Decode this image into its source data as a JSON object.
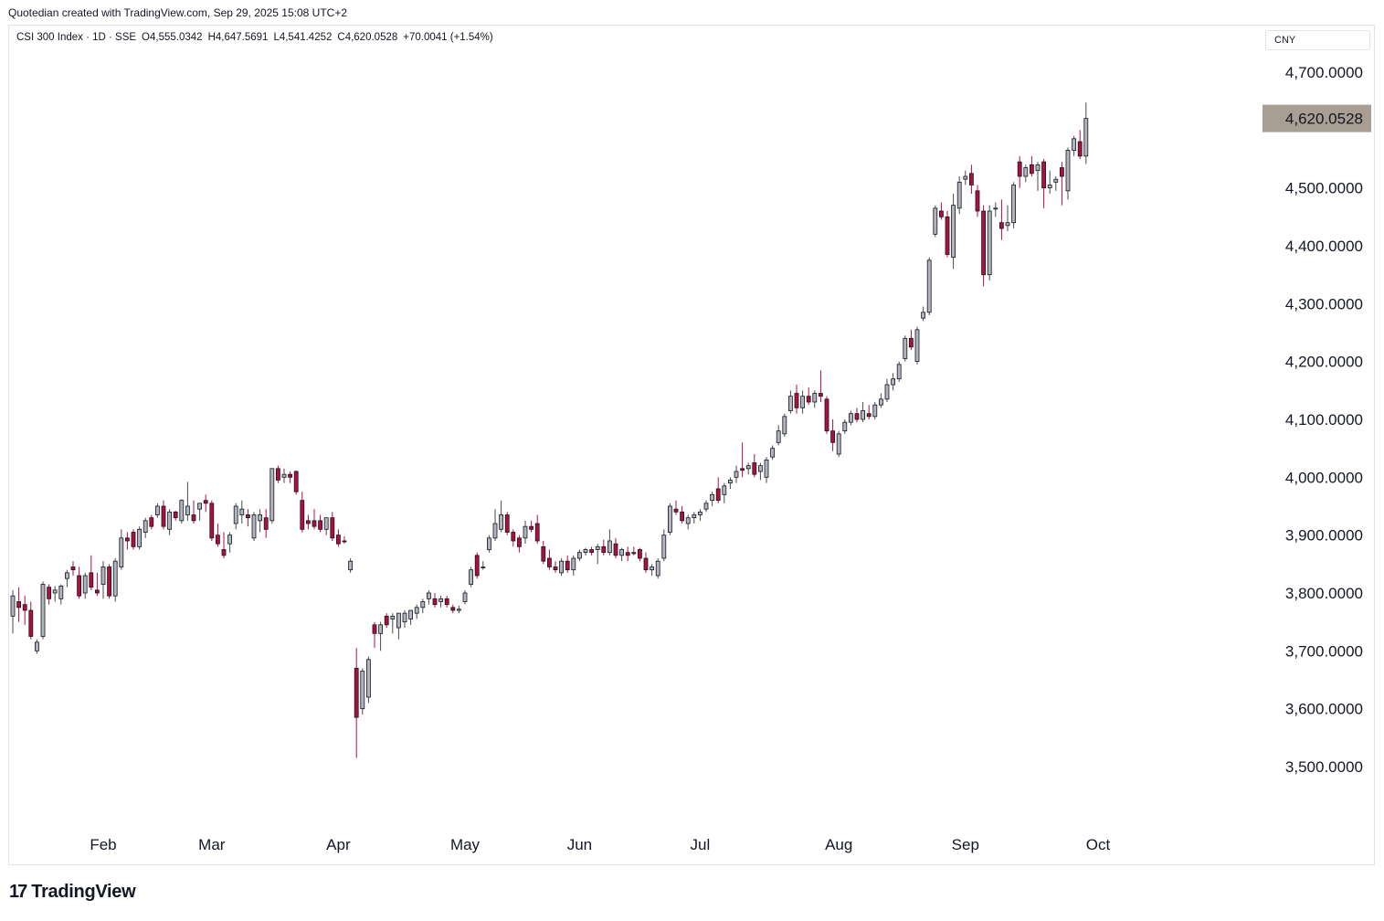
{
  "header": {
    "caption": "Quotedian created with TradingView.com, Sep 29, 2025 15:08 UTC+2"
  },
  "legend": {
    "symbol": "CSI 300 Index · 1D · SSE",
    "open": "O4,555.0342",
    "high": "H4,647.5691",
    "low": "L4,541.4252",
    "close": "C4,620.0528",
    "change": "+70.0041 (+1.54%)"
  },
  "currency": "CNY",
  "footer": {
    "logo_mark": "17",
    "brand": "TradingView"
  },
  "colors": {
    "up": "#b2b5be",
    "up_border": "#131722",
    "down": "#b00f3c",
    "down_border": "#131722",
    "last_price_bg": "#a89e93"
  },
  "chart_data": {
    "type": "candlestick",
    "title": "CSI 300 Index · 1D · SSE",
    "ylim": [
      3380,
      4810
    ],
    "yticks": [
      {
        "value": 4700,
        "label": "4,700.0000"
      },
      {
        "value": 4500,
        "label": "4,500.0000"
      },
      {
        "value": 4400,
        "label": "4,400.0000"
      },
      {
        "value": 4300,
        "label": "4,300.0000"
      },
      {
        "value": 4200,
        "label": "4,200.0000"
      },
      {
        "value": 4100,
        "label": "4,100.0000"
      },
      {
        "value": 4000,
        "label": "4,000.0000"
      },
      {
        "value": 3900,
        "label": "3,900.0000"
      },
      {
        "value": 3800,
        "label": "3,800.0000"
      },
      {
        "value": 3700,
        "label": "3,700.0000"
      },
      {
        "value": 3600,
        "label": "3,600.0000"
      },
      {
        "value": 3500,
        "label": "3,500.0000"
      }
    ],
    "xticks": [
      {
        "index": 15,
        "label": "Feb"
      },
      {
        "index": 33,
        "label": "Mar"
      },
      {
        "index": 54,
        "label": "Apr"
      },
      {
        "index": 75,
        "label": "May"
      },
      {
        "index": 94,
        "label": "Jun"
      },
      {
        "index": 114,
        "label": "Jul"
      },
      {
        "index": 137,
        "label": "Aug"
      },
      {
        "index": 158,
        "label": "Sep"
      },
      {
        "index": 180,
        "label": "Oct"
      }
    ],
    "last_price": {
      "value": 4620.0528,
      "label": "4,620.0528"
    },
    "candles": [
      {
        "o": 3760,
        "h": 3805,
        "l": 3730,
        "c": 3795
      },
      {
        "o": 3785,
        "h": 3810,
        "l": 3750,
        "c": 3775
      },
      {
        "o": 3780,
        "h": 3795,
        "l": 3745,
        "c": 3770
      },
      {
        "o": 3770,
        "h": 3785,
        "l": 3720,
        "c": 3725
      },
      {
        "o": 3700,
        "h": 3720,
        "l": 3695,
        "c": 3715
      },
      {
        "o": 3725,
        "h": 3820,
        "l": 3720,
        "c": 3815
      },
      {
        "o": 3810,
        "h": 3815,
        "l": 3780,
        "c": 3790
      },
      {
        "o": 3800,
        "h": 3812,
        "l": 3785,
        "c": 3805
      },
      {
        "o": 3790,
        "h": 3815,
        "l": 3780,
        "c": 3812
      },
      {
        "o": 3825,
        "h": 3840,
        "l": 3810,
        "c": 3835
      },
      {
        "o": 3845,
        "h": 3855,
        "l": 3830,
        "c": 3840
      },
      {
        "o": 3830,
        "h": 3845,
        "l": 3790,
        "c": 3795
      },
      {
        "o": 3800,
        "h": 3835,
        "l": 3790,
        "c": 3830
      },
      {
        "o": 3835,
        "h": 3865,
        "l": 3805,
        "c": 3810
      },
      {
        "o": 3805,
        "h": 3835,
        "l": 3795,
        "c": 3800
      },
      {
        "o": 3815,
        "h": 3855,
        "l": 3790,
        "c": 3845
      },
      {
        "o": 3845,
        "h": 3850,
        "l": 3790,
        "c": 3795
      },
      {
        "o": 3795,
        "h": 3860,
        "l": 3785,
        "c": 3855
      },
      {
        "o": 3845,
        "h": 3910,
        "l": 3840,
        "c": 3895
      },
      {
        "o": 3895,
        "h": 3905,
        "l": 3875,
        "c": 3890
      },
      {
        "o": 3905,
        "h": 3910,
        "l": 3875,
        "c": 3880
      },
      {
        "o": 3880,
        "h": 3915,
        "l": 3875,
        "c": 3910
      },
      {
        "o": 3905,
        "h": 3930,
        "l": 3895,
        "c": 3925
      },
      {
        "o": 3930,
        "h": 3935,
        "l": 3910,
        "c": 3915
      },
      {
        "o": 3935,
        "h": 3955,
        "l": 3930,
        "c": 3950
      },
      {
        "o": 3950,
        "h": 3960,
        "l": 3910,
        "c": 3915
      },
      {
        "o": 3910,
        "h": 3945,
        "l": 3900,
        "c": 3940
      },
      {
        "o": 3940,
        "h": 3942,
        "l": 3925,
        "c": 3930
      },
      {
        "o": 3925,
        "h": 3962,
        "l": 3920,
        "c": 3960
      },
      {
        "o": 3935,
        "h": 3992,
        "l": 3925,
        "c": 3950
      },
      {
        "o": 3935,
        "h": 3960,
        "l": 3920,
        "c": 3925
      },
      {
        "o": 3945,
        "h": 3955,
        "l": 3925,
        "c": 3955
      },
      {
        "o": 3960,
        "h": 3970,
        "l": 3940,
        "c": 3955
      },
      {
        "o": 3955,
        "h": 3960,
        "l": 3890,
        "c": 3895
      },
      {
        "o": 3900,
        "h": 3920,
        "l": 3880,
        "c": 3885
      },
      {
        "o": 3875,
        "h": 3905,
        "l": 3860,
        "c": 3865
      },
      {
        "o": 3885,
        "h": 3905,
        "l": 3870,
        "c": 3900
      },
      {
        "o": 3920,
        "h": 3955,
        "l": 3910,
        "c": 3950
      },
      {
        "o": 3935,
        "h": 3960,
        "l": 3920,
        "c": 3945
      },
      {
        "o": 3935,
        "h": 3945,
        "l": 3915,
        "c": 3930
      },
      {
        "o": 3895,
        "h": 3940,
        "l": 3890,
        "c": 3935
      },
      {
        "o": 3925,
        "h": 3945,
        "l": 3905,
        "c": 3935
      },
      {
        "o": 3930,
        "h": 3945,
        "l": 3895,
        "c": 3910
      },
      {
        "o": 3925,
        "h": 4015,
        "l": 3920,
        "c": 4015
      },
      {
        "o": 4015,
        "h": 4020,
        "l": 3990,
        "c": 3995
      },
      {
        "o": 4000,
        "h": 4015,
        "l": 3990,
        "c": 4005
      },
      {
        "o": 4005,
        "h": 4010,
        "l": 3990,
        "c": 4000
      },
      {
        "o": 4010,
        "h": 4012,
        "l": 3970,
        "c": 3975
      },
      {
        "o": 3960,
        "h": 3975,
        "l": 3905,
        "c": 3910
      },
      {
        "o": 3925,
        "h": 3935,
        "l": 3910,
        "c": 3920
      },
      {
        "o": 3925,
        "h": 3945,
        "l": 3910,
        "c": 3915
      },
      {
        "o": 3925,
        "h": 3935,
        "l": 3905,
        "c": 3910
      },
      {
        "o": 3910,
        "h": 3925,
        "l": 3900,
        "c": 3930
      },
      {
        "o": 3930,
        "h": 3940,
        "l": 3890,
        "c": 3895
      },
      {
        "o": 3900,
        "h": 3910,
        "l": 3880,
        "c": 3885
      },
      {
        "o": 3890,
        "h": 3898,
        "l": 3885,
        "c": 3889
      },
      {
        "o": 3840,
        "h": 3860,
        "l": 3835,
        "c": 3855
      },
      {
        "o": 3670,
        "h": 3705,
        "l": 3515,
        "c": 3585
      },
      {
        "o": 3600,
        "h": 3670,
        "l": 3590,
        "c": 3665
      },
      {
        "o": 3620,
        "h": 3690,
        "l": 3610,
        "c": 3685
      },
      {
        "o": 3745,
        "h": 3750,
        "l": 3705,
        "c": 3730
      },
      {
        "o": 3730,
        "h": 3750,
        "l": 3700,
        "c": 3745
      },
      {
        "o": 3760,
        "h": 3765,
        "l": 3740,
        "c": 3745
      },
      {
        "o": 3755,
        "h": 3765,
        "l": 3730,
        "c": 3760
      },
      {
        "o": 3740,
        "h": 3765,
        "l": 3720,
        "c": 3765
      },
      {
        "o": 3750,
        "h": 3770,
        "l": 3740,
        "c": 3765
      },
      {
        "o": 3755,
        "h": 3770,
        "l": 3745,
        "c": 3770
      },
      {
        "o": 3765,
        "h": 3780,
        "l": 3755,
        "c": 3775
      },
      {
        "o": 3775,
        "h": 3790,
        "l": 3765,
        "c": 3785
      },
      {
        "o": 3790,
        "h": 3805,
        "l": 3780,
        "c": 3800
      },
      {
        "o": 3790,
        "h": 3800,
        "l": 3775,
        "c": 3780
      },
      {
        "o": 3785,
        "h": 3795,
        "l": 3775,
        "c": 3790
      },
      {
        "o": 3790,
        "h": 3795,
        "l": 3775,
        "c": 3780
      },
      {
        "o": 3775,
        "h": 3780,
        "l": 3765,
        "c": 3770
      },
      {
        "o": 3770,
        "h": 3778,
        "l": 3765,
        "c": 3772
      },
      {
        "o": 3785,
        "h": 3805,
        "l": 3780,
        "c": 3800
      },
      {
        "o": 3815,
        "h": 3845,
        "l": 3810,
        "c": 3840
      },
      {
        "o": 3865,
        "h": 3870,
        "l": 3825,
        "c": 3830
      },
      {
        "o": 3845,
        "h": 3855,
        "l": 3840,
        "c": 3845
      },
      {
        "o": 3875,
        "h": 3900,
        "l": 3870,
        "c": 3895
      },
      {
        "o": 3895,
        "h": 3945,
        "l": 3890,
        "c": 3920
      },
      {
        "o": 3910,
        "h": 3960,
        "l": 3905,
        "c": 3935
      },
      {
        "o": 3935,
        "h": 3940,
        "l": 3900,
        "c": 3905
      },
      {
        "o": 3905,
        "h": 3910,
        "l": 3880,
        "c": 3890
      },
      {
        "o": 3895,
        "h": 3900,
        "l": 3870,
        "c": 3880
      },
      {
        "o": 3895,
        "h": 3925,
        "l": 3885,
        "c": 3915
      },
      {
        "o": 3915,
        "h": 3925,
        "l": 3905,
        "c": 3910
      },
      {
        "o": 3920,
        "h": 3935,
        "l": 3885,
        "c": 3890
      },
      {
        "o": 3880,
        "h": 3890,
        "l": 3850,
        "c": 3855
      },
      {
        "o": 3860,
        "h": 3875,
        "l": 3840,
        "c": 3845
      },
      {
        "o": 3845,
        "h": 3855,
        "l": 3835,
        "c": 3840
      },
      {
        "o": 3835,
        "h": 3860,
        "l": 3830,
        "c": 3855
      },
      {
        "o": 3855,
        "h": 3865,
        "l": 3835,
        "c": 3840
      },
      {
        "o": 3840,
        "h": 3865,
        "l": 3830,
        "c": 3860
      },
      {
        "o": 3860,
        "h": 3875,
        "l": 3855,
        "c": 3870
      },
      {
        "o": 3870,
        "h": 3878,
        "l": 3865,
        "c": 3875
      },
      {
        "o": 3875,
        "h": 3880,
        "l": 3865,
        "c": 3870
      },
      {
        "o": 3875,
        "h": 3885,
        "l": 3850,
        "c": 3880
      },
      {
        "o": 3880,
        "h": 3892,
        "l": 3865,
        "c": 3870
      },
      {
        "o": 3870,
        "h": 3910,
        "l": 3865,
        "c": 3890
      },
      {
        "o": 3885,
        "h": 3895,
        "l": 3860,
        "c": 3865
      },
      {
        "o": 3865,
        "h": 3878,
        "l": 3855,
        "c": 3875
      },
      {
        "o": 3870,
        "h": 3880,
        "l": 3855,
        "c": 3865
      },
      {
        "o": 3870,
        "h": 3880,
        "l": 3865,
        "c": 3868
      },
      {
        "o": 3875,
        "h": 3878,
        "l": 3855,
        "c": 3860
      },
      {
        "o": 3860,
        "h": 3870,
        "l": 3835,
        "c": 3840
      },
      {
        "o": 3840,
        "h": 3850,
        "l": 3830,
        "c": 3845
      },
      {
        "o": 3830,
        "h": 3860,
        "l": 3825,
        "c": 3855
      },
      {
        "o": 3860,
        "h": 3910,
        "l": 3855,
        "c": 3900
      },
      {
        "o": 3905,
        "h": 3955,
        "l": 3900,
        "c": 3950
      },
      {
        "o": 3945,
        "h": 3960,
        "l": 3935,
        "c": 3940
      },
      {
        "o": 3940,
        "h": 3950,
        "l": 3920,
        "c": 3925
      },
      {
        "o": 3920,
        "h": 3935,
        "l": 3910,
        "c": 3930
      },
      {
        "o": 3930,
        "h": 3940,
        "l": 3920,
        "c": 3935
      },
      {
        "o": 3935,
        "h": 3945,
        "l": 3925,
        "c": 3940
      },
      {
        "o": 3945,
        "h": 3960,
        "l": 3940,
        "c": 3955
      },
      {
        "o": 3960,
        "h": 3975,
        "l": 3950,
        "c": 3970
      },
      {
        "o": 3980,
        "h": 4000,
        "l": 3955,
        "c": 3960
      },
      {
        "o": 3970,
        "h": 3990,
        "l": 3955,
        "c": 3985
      },
      {
        "o": 3990,
        "h": 4000,
        "l": 3980,
        "c": 3995
      },
      {
        "o": 4000,
        "h": 4020,
        "l": 3990,
        "c": 4010
      },
      {
        "o": 4015,
        "h": 4060,
        "l": 4000,
        "c": 4012
      },
      {
        "o": 4015,
        "h": 4025,
        "l": 4005,
        "c": 4020
      },
      {
        "o": 4025,
        "h": 4040,
        "l": 4000,
        "c": 4005
      },
      {
        "o": 4010,
        "h": 4025,
        "l": 3995,
        "c": 4020
      },
      {
        "o": 4000,
        "h": 4035,
        "l": 3990,
        "c": 4030
      },
      {
        "o": 4035,
        "h": 4055,
        "l": 4030,
        "c": 4050
      },
      {
        "o": 4060,
        "h": 4090,
        "l": 4055,
        "c": 4080
      },
      {
        "o": 4075,
        "h": 4110,
        "l": 4070,
        "c": 4105
      },
      {
        "o": 4115,
        "h": 4150,
        "l": 4110,
        "c": 4140
      },
      {
        "o": 4145,
        "h": 4160,
        "l": 4110,
        "c": 4120
      },
      {
        "o": 4120,
        "h": 4150,
        "l": 4110,
        "c": 4140
      },
      {
        "o": 4140,
        "h": 4155,
        "l": 4125,
        "c": 4130
      },
      {
        "o": 4130,
        "h": 4150,
        "l": 4120,
        "c": 4145
      },
      {
        "o": 4145,
        "h": 4185,
        "l": 4130,
        "c": 4140
      },
      {
        "o": 4135,
        "h": 4140,
        "l": 4075,
        "c": 4080
      },
      {
        "o": 4080,
        "h": 4100,
        "l": 4045,
        "c": 4060
      },
      {
        "o": 4040,
        "h": 4080,
        "l": 4035,
        "c": 4075
      },
      {
        "o": 4080,
        "h": 4100,
        "l": 4075,
        "c": 4095
      },
      {
        "o": 4095,
        "h": 4115,
        "l": 4090,
        "c": 4110
      },
      {
        "o": 4110,
        "h": 4120,
        "l": 4095,
        "c": 4100
      },
      {
        "o": 4100,
        "h": 4130,
        "l": 4095,
        "c": 4115
      },
      {
        "o": 4110,
        "h": 4125,
        "l": 4100,
        "c": 4105
      },
      {
        "o": 4105,
        "h": 4130,
        "l": 4100,
        "c": 4125
      },
      {
        "o": 4125,
        "h": 4145,
        "l": 4120,
        "c": 4135
      },
      {
        "o": 4135,
        "h": 4170,
        "l": 4130,
        "c": 4160
      },
      {
        "o": 4160,
        "h": 4180,
        "l": 4150,
        "c": 4170
      },
      {
        "o": 4170,
        "h": 4200,
        "l": 4165,
        "c": 4195
      },
      {
        "o": 4205,
        "h": 4245,
        "l": 4200,
        "c": 4240
      },
      {
        "o": 4240,
        "h": 4255,
        "l": 4220,
        "c": 4225
      },
      {
        "o": 4200,
        "h": 4260,
        "l": 4195,
        "c": 4255
      },
      {
        "o": 4275,
        "h": 4295,
        "l": 4270,
        "c": 4285
      },
      {
        "o": 4285,
        "h": 4380,
        "l": 4280,
        "c": 4375
      },
      {
        "o": 4420,
        "h": 4470,
        "l": 4415,
        "c": 4465
      },
      {
        "o": 4460,
        "h": 4475,
        "l": 4445,
        "c": 4450
      },
      {
        "o": 4450,
        "h": 4460,
        "l": 4380,
        "c": 4385
      },
      {
        "o": 4380,
        "h": 4490,
        "l": 4360,
        "c": 4470
      },
      {
        "o": 4465,
        "h": 4520,
        "l": 4455,
        "c": 4510
      },
      {
        "o": 4515,
        "h": 4530,
        "l": 4505,
        "c": 4520
      },
      {
        "o": 4525,
        "h": 4540,
        "l": 4490,
        "c": 4505
      },
      {
        "o": 4495,
        "h": 4505,
        "l": 4450,
        "c": 4460
      },
      {
        "o": 4460,
        "h": 4470,
        "l": 4330,
        "c": 4350
      },
      {
        "o": 4350,
        "h": 4470,
        "l": 4340,
        "c": 4460
      },
      {
        "o": 4465,
        "h": 4475,
        "l": 4450,
        "c": 4465
      },
      {
        "o": 4440,
        "h": 4480,
        "l": 4410,
        "c": 4430
      },
      {
        "o": 4435,
        "h": 4470,
        "l": 4425,
        "c": 4440
      },
      {
        "o": 4440,
        "h": 4510,
        "l": 4430,
        "c": 4505
      },
      {
        "o": 4545,
        "h": 4555,
        "l": 4500,
        "c": 4520
      },
      {
        "o": 4520,
        "h": 4540,
        "l": 4510,
        "c": 4535
      },
      {
        "o": 4540,
        "h": 4555,
        "l": 4520,
        "c": 4525
      },
      {
        "o": 4530,
        "h": 4545,
        "l": 4495,
        "c": 4540
      },
      {
        "o": 4545,
        "h": 4550,
        "l": 4465,
        "c": 4500
      },
      {
        "o": 4500,
        "h": 4530,
        "l": 4490,
        "c": 4505
      },
      {
        "o": 4510,
        "h": 4520,
        "l": 4495,
        "c": 4515
      },
      {
        "o": 4535,
        "h": 4545,
        "l": 4470,
        "c": 4520
      },
      {
        "o": 4495,
        "h": 4570,
        "l": 4480,
        "c": 4565
      },
      {
        "o": 4565,
        "h": 4590,
        "l": 4555,
        "c": 4585
      },
      {
        "o": 4580,
        "h": 4600,
        "l": 4550,
        "c": 4555
      },
      {
        "o": 4555.0342,
        "h": 4647.5691,
        "l": 4541.4252,
        "c": 4620.0528
      }
    ]
  }
}
